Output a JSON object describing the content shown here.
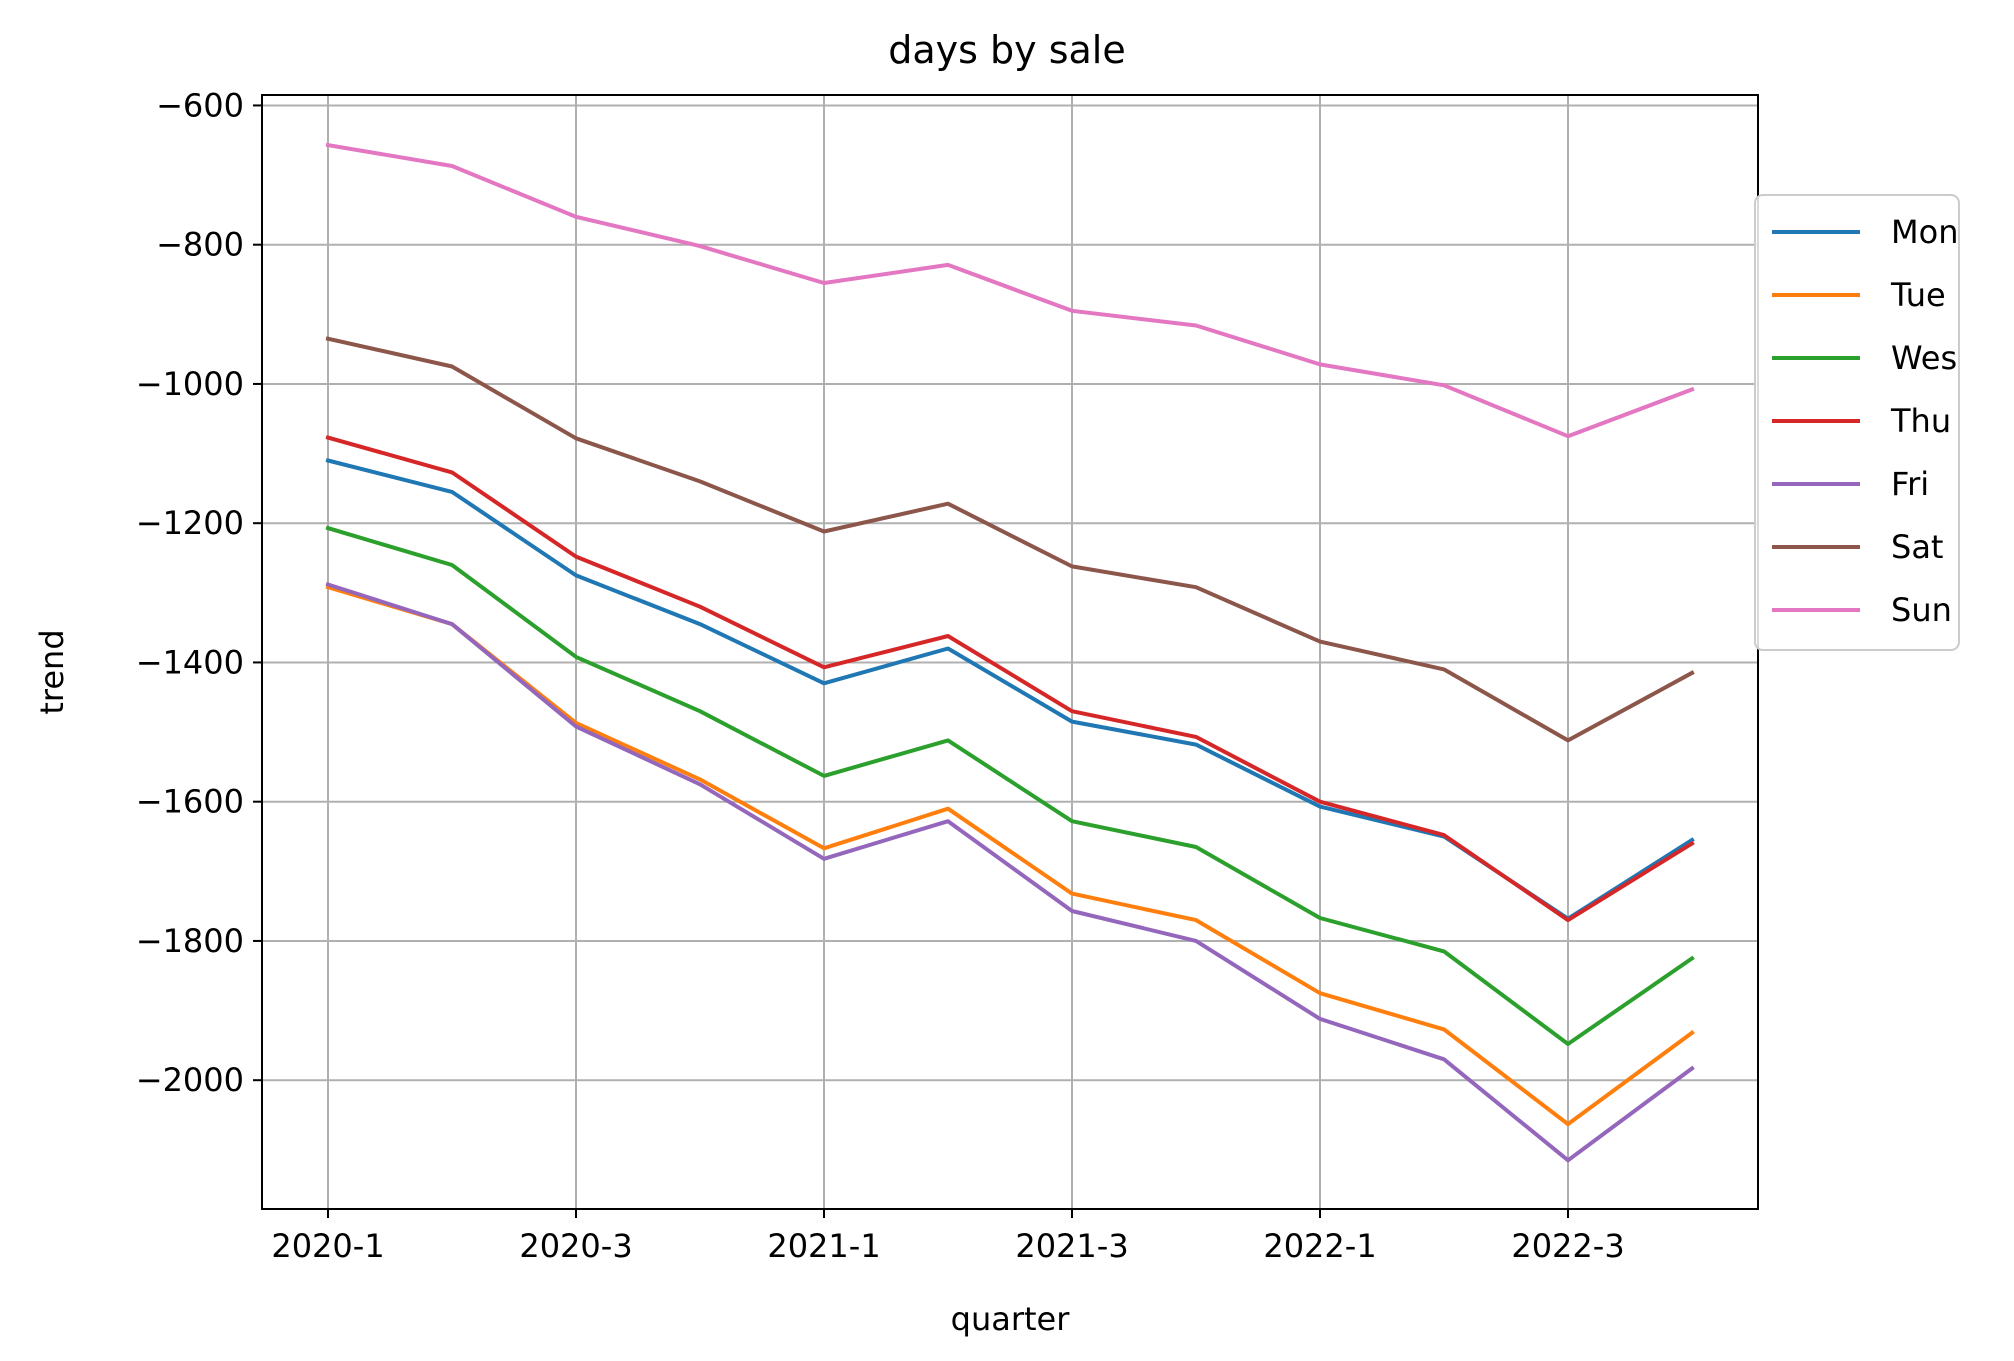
{
  "chart_data": {
    "type": "line",
    "title": "days by sale",
    "xlabel": "quarter",
    "ylabel": "trend",
    "categories": [
      "2020-1",
      "2020-2",
      "2020-3",
      "2020-4",
      "2021-1",
      "2021-2",
      "2021-3",
      "2021-4",
      "2022-1",
      "2022-2",
      "2022-3",
      "2022-4"
    ],
    "x_tick_labels": [
      "2020-1",
      "2020-3",
      "2021-1",
      "2021-3",
      "2022-1",
      "2022-3"
    ],
    "y_ticks": [
      -600,
      -800,
      -1000,
      -1200,
      -1400,
      -1600,
      -1800,
      -2000
    ],
    "y_tick_labels": [
      "−600",
      "−800",
      "−1000",
      "−1200",
      "−1400",
      "−1600",
      "−1800",
      "−2000"
    ],
    "ylim": [
      -2185,
      -585
    ],
    "grid": true,
    "legend_position": "right, outside plot",
    "series": [
      {
        "name": "Mon",
        "color": "#1f77b4",
        "values": [
          -1110,
          -1155,
          -1275,
          -1345,
          -1430,
          -1380,
          -1485,
          -1518,
          -1607,
          -1650,
          -1768,
          -1655
        ]
      },
      {
        "name": "Tue",
        "color": "#ff7f0e",
        "values": [
          -1292,
          -1345,
          -1487,
          -1568,
          -1667,
          -1610,
          -1732,
          -1770,
          -1875,
          -1927,
          -2063,
          -1932
        ]
      },
      {
        "name": "Wes",
        "color": "#2ca02c",
        "values": [
          -1207,
          -1260,
          -1392,
          -1470,
          -1563,
          -1512,
          -1628,
          -1665,
          -1767,
          -1815,
          -1948,
          -1825
        ]
      },
      {
        "name": "Thu",
        "color": "#d62728",
        "values": [
          -1077,
          -1127,
          -1248,
          -1320,
          -1407,
          -1362,
          -1470,
          -1507,
          -1600,
          -1648,
          -1770,
          -1660
        ]
      },
      {
        "name": "Fri",
        "color": "#9467bd",
        "values": [
          -1288,
          -1345,
          -1492,
          -1575,
          -1682,
          -1628,
          -1757,
          -1800,
          -1912,
          -1970,
          -2115,
          -1983
        ]
      },
      {
        "name": "Sat",
        "color": "#8c564b",
        "values": [
          -935,
          -975,
          -1078,
          -1140,
          -1212,
          -1172,
          -1262,
          -1292,
          -1370,
          -1410,
          -1512,
          -1415
        ]
      },
      {
        "name": "Sun",
        "color": "#e377c2",
        "values": [
          -657,
          -687,
          -760,
          -802,
          -855,
          -829,
          -895,
          -916,
          -972,
          -1002,
          -1075,
          -1008
        ]
      }
    ]
  }
}
